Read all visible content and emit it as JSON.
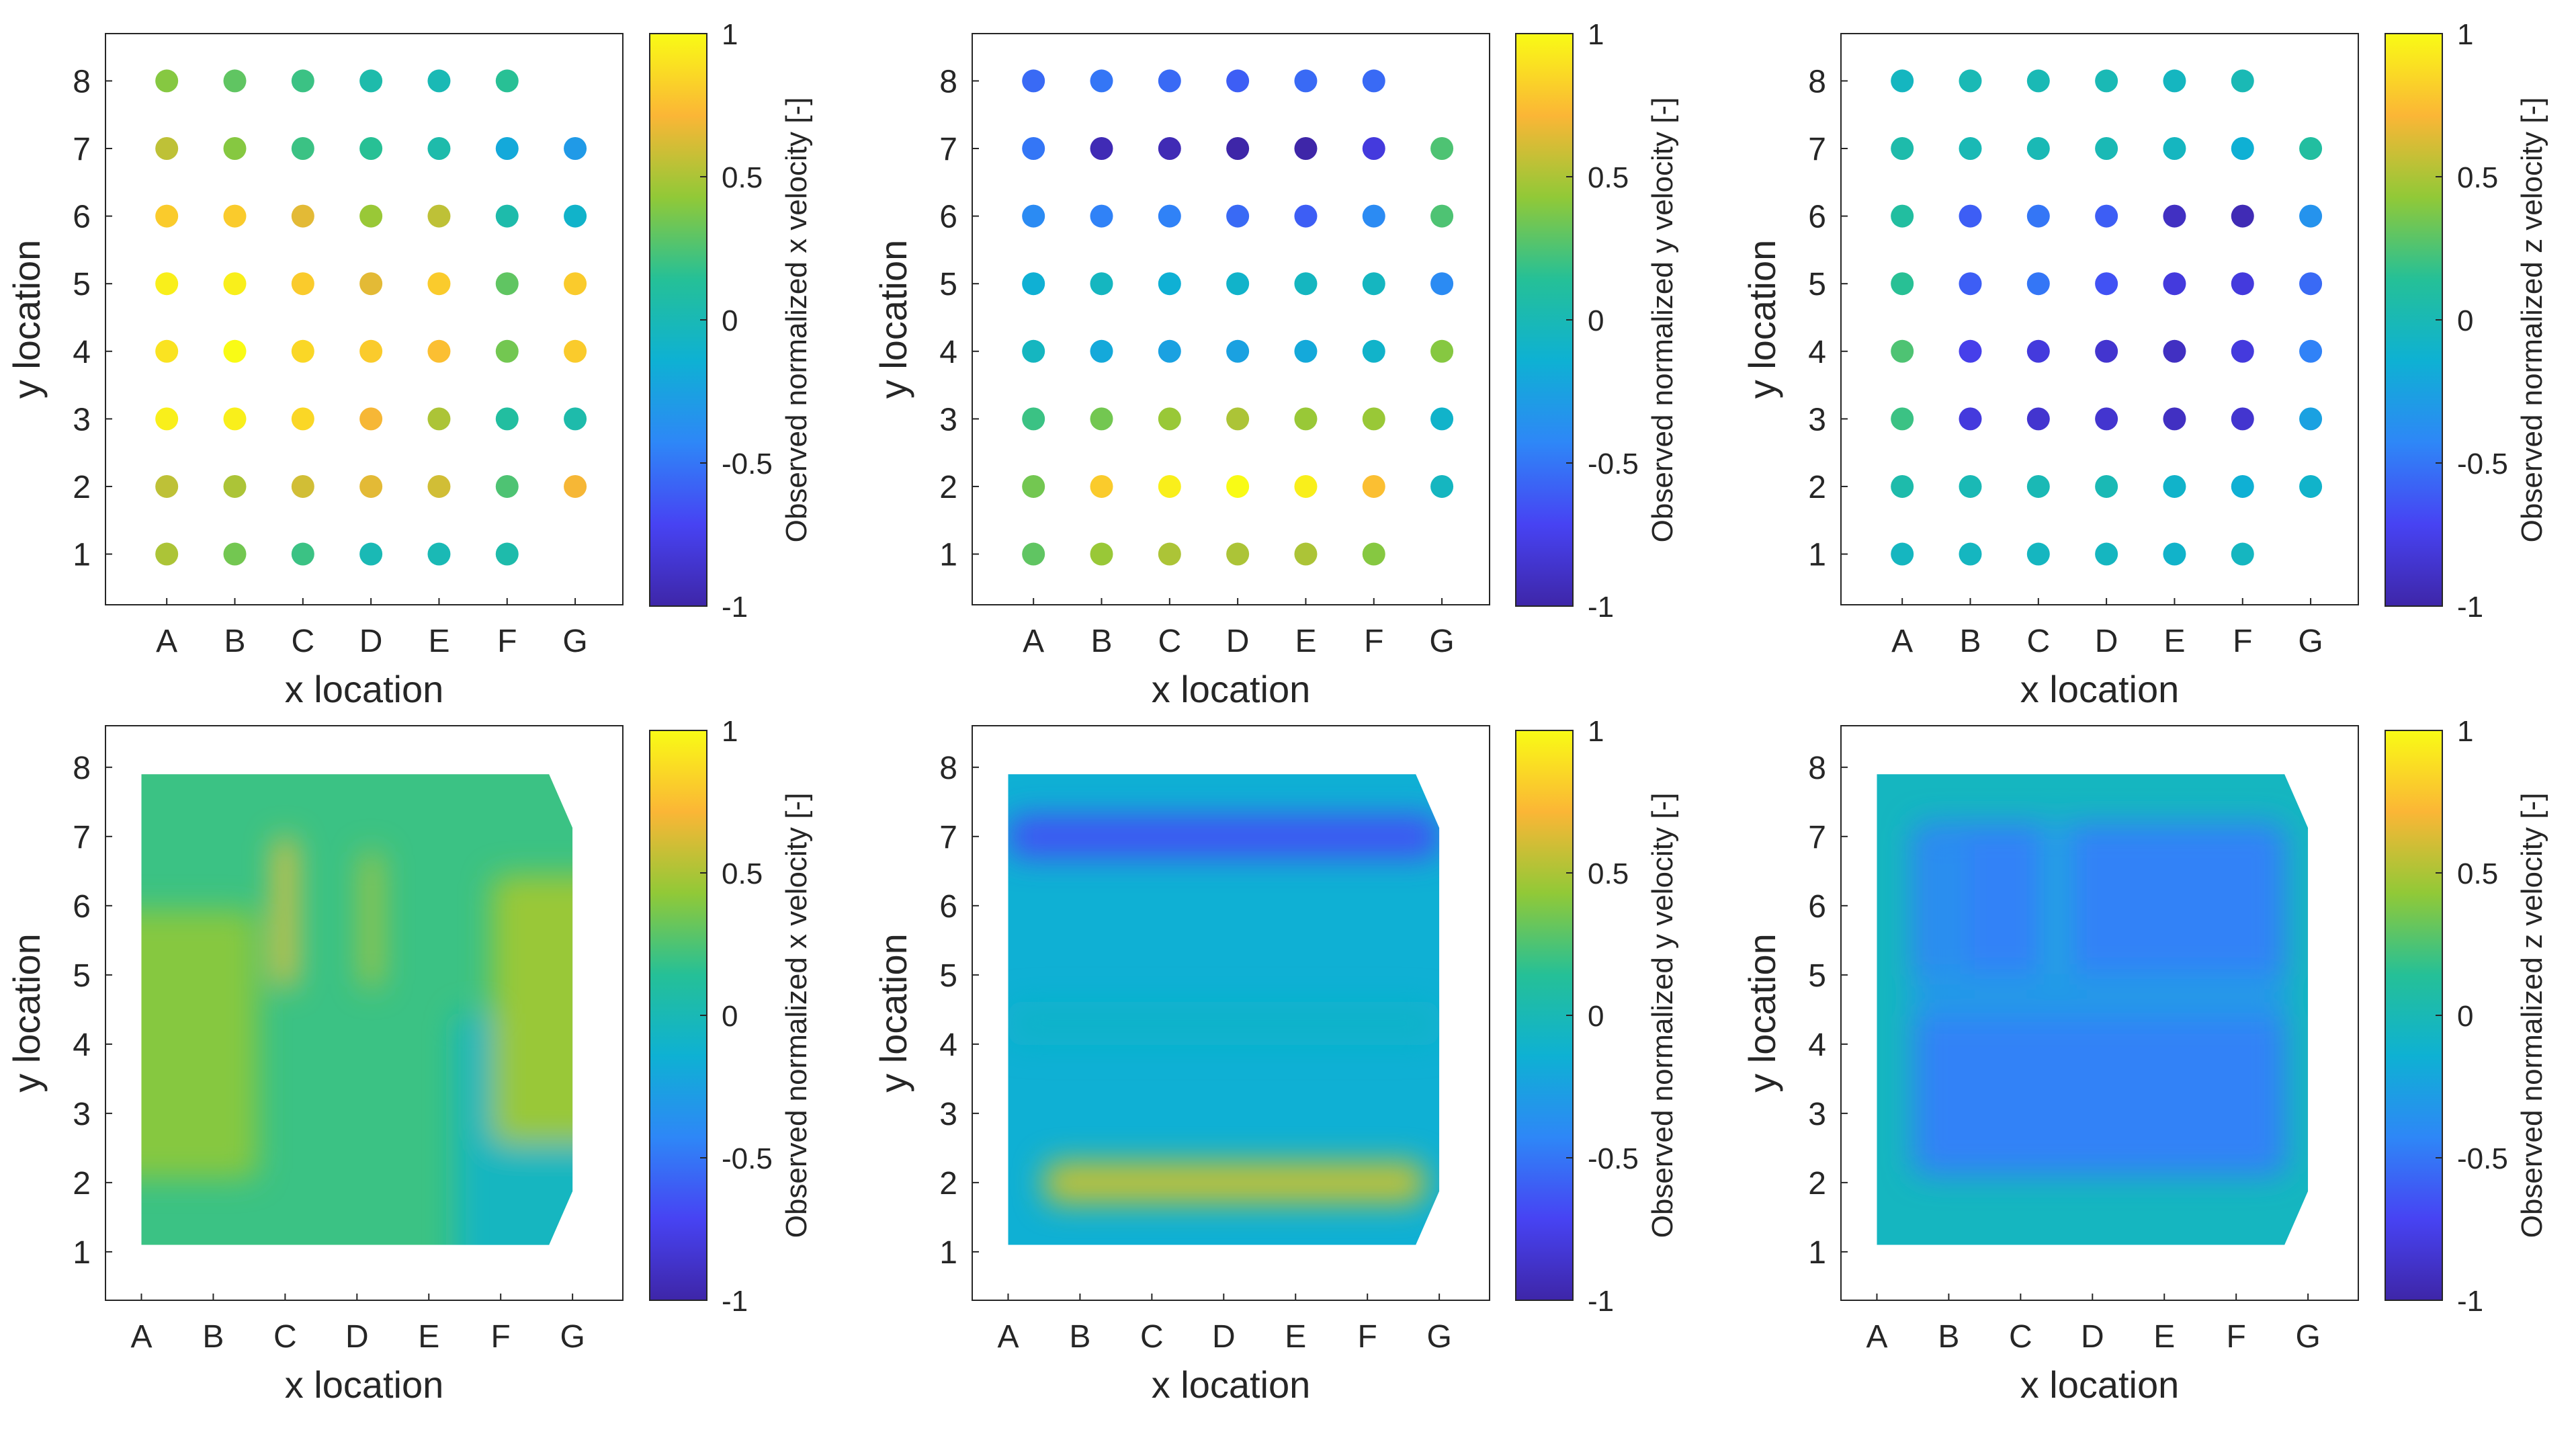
{
  "colorbar_ticks": [
    "1",
    "0.5",
    "0",
    "-0.5",
    "-1"
  ],
  "colormap": [
    "#3e26a8",
    "#4743f3",
    "#2e87f7",
    "#0eb1d3",
    "#25c097",
    "#91c937",
    "#fbb636",
    "#f9fb15"
  ],
  "chart_data": [
    {
      "type": "scatter",
      "title": "",
      "xlabel": "x location",
      "ylabel": "y location",
      "colorbar_label": "Observed normalized x velocity [-]",
      "x_ticks": [
        "A",
        "B",
        "C",
        "D",
        "E",
        "F",
        "G"
      ],
      "y_ticks": [
        "1",
        "2",
        "3",
        "4",
        "5",
        "6",
        "7",
        "8"
      ],
      "clim": [
        -1,
        1
      ],
      "values": [
        [
          0.5,
          0.35,
          0.2,
          0.0,
          0.0,
          0.05,
          null
        ],
        [
          0.55,
          0.5,
          0.6,
          0.65,
          0.6,
          0.25,
          0.7
        ],
        [
          0.95,
          0.95,
          0.85,
          0.7,
          0.5,
          0.1,
          0.05
        ],
        [
          0.9,
          1.0,
          0.85,
          0.8,
          0.75,
          0.35,
          0.8
        ],
        [
          0.95,
          0.95,
          0.8,
          0.65,
          0.8,
          0.3,
          0.8
        ],
        [
          0.8,
          0.8,
          0.65,
          0.45,
          0.55,
          0.05,
          -0.1
        ],
        [
          0.55,
          0.4,
          0.2,
          0.15,
          0.05,
          -0.2,
          -0.3
        ],
        [
          0.4,
          0.3,
          0.2,
          0.05,
          0.0,
          0.15,
          null
        ]
      ]
    },
    {
      "type": "scatter",
      "title": "",
      "xlabel": "x location",
      "ylabel": "y location",
      "colorbar_label": "Observed normalized y velocity [-]",
      "x_ticks": [
        "A",
        "B",
        "C",
        "D",
        "E",
        "F",
        "G"
      ],
      "y_ticks": [
        "1",
        "2",
        "3",
        "4",
        "5",
        "6",
        "7",
        "8"
      ],
      "clim": [
        -1,
        1
      ],
      "values": [
        [
          0.3,
          0.45,
          0.5,
          0.5,
          0.5,
          0.4,
          null
        ],
        [
          0.35,
          0.8,
          0.95,
          1.0,
          0.95,
          0.75,
          -0.05
        ],
        [
          0.2,
          0.35,
          0.45,
          0.5,
          0.45,
          0.45,
          -0.1
        ],
        [
          -0.05,
          -0.2,
          -0.25,
          -0.25,
          -0.2,
          -0.1,
          0.4
        ],
        [
          -0.15,
          -0.05,
          -0.15,
          -0.1,
          -0.05,
          -0.05,
          -0.4
        ],
        [
          -0.4,
          -0.45,
          -0.45,
          -0.55,
          -0.6,
          -0.4,
          0.25
        ],
        [
          -0.5,
          -0.95,
          -0.95,
          -1.0,
          -1.0,
          -0.8,
          0.25
        ],
        [
          -0.55,
          -0.5,
          -0.55,
          -0.6,
          -0.55,
          -0.55,
          null
        ]
      ]
    },
    {
      "type": "scatter",
      "title": "",
      "xlabel": "x location",
      "ylabel": "y location",
      "colorbar_label": "Observed normalized z velocity [-]",
      "x_ticks": [
        "A",
        "B",
        "C",
        "D",
        "E",
        "F",
        "G"
      ],
      "y_ticks": [
        "1",
        "2",
        "3",
        "4",
        "5",
        "6",
        "7",
        "8"
      ],
      "clim": [
        -1,
        1
      ],
      "values": [
        [
          -0.05,
          -0.05,
          -0.05,
          -0.05,
          -0.1,
          -0.05,
          null
        ],
        [
          0.05,
          0.0,
          0.0,
          0.0,
          -0.1,
          -0.15,
          -0.1
        ],
        [
          0.2,
          -0.8,
          -0.85,
          -0.85,
          -0.9,
          -0.85,
          -0.25
        ],
        [
          0.25,
          -0.75,
          -0.8,
          -0.85,
          -0.9,
          -0.8,
          -0.45
        ],
        [
          0.15,
          -0.6,
          -0.5,
          -0.65,
          -0.8,
          -0.8,
          -0.55
        ],
        [
          0.1,
          -0.6,
          -0.5,
          -0.6,
          -0.9,
          -0.95,
          -0.35
        ],
        [
          0.05,
          0.0,
          0.0,
          0.0,
          -0.05,
          -0.15,
          0.1
        ],
        [
          -0.05,
          0.0,
          0.0,
          0.0,
          -0.05,
          0.0,
          null
        ]
      ]
    },
    {
      "type": "heatmap",
      "title": "",
      "xlabel": "x location",
      "ylabel": "y location",
      "colorbar_label": "Observed normalized x velocity [-]",
      "x_ticks": [
        "A",
        "B",
        "C",
        "D",
        "E",
        "F",
        "G"
      ],
      "y_ticks": [
        "1",
        "2",
        "3",
        "4",
        "5",
        "6",
        "7",
        "8"
      ],
      "clim": [
        -1,
        1
      ],
      "x_range": [
        0.5,
        7.7
      ],
      "y_range": [
        0.3,
        8.6
      ],
      "data_extent_x": [
        1,
        7
      ],
      "data_extent_y": [
        1.1,
        7.9
      ],
      "background_value": 0.2,
      "features": [
        {
          "kind": "hot-streak",
          "x": 3.0,
          "y_from": 4.8,
          "y_to": 7.0,
          "value": 0.75
        },
        {
          "kind": "warm-streak",
          "x": 4.2,
          "y_from": 4.8,
          "y_to": 6.8,
          "value": 0.5
        },
        {
          "kind": "warm-region",
          "x": 1.5,
          "y": 4.0,
          "value": 0.4
        },
        {
          "kind": "cool-patch",
          "x": 6.5,
          "y": 2.5,
          "value": -0.05
        },
        {
          "kind": "warm-spot",
          "x": 7.0,
          "y": 4.5,
          "value": 0.45
        }
      ]
    },
    {
      "type": "heatmap",
      "title": "",
      "xlabel": "x location",
      "ylabel": "y location",
      "colorbar_label": "Observed normalized y velocity [-]",
      "x_ticks": [
        "A",
        "B",
        "C",
        "D",
        "E",
        "F",
        "G"
      ],
      "y_ticks": [
        "1",
        "2",
        "3",
        "4",
        "5",
        "6",
        "7",
        "8"
      ],
      "clim": [
        -1,
        1
      ],
      "x_range": [
        0.5,
        7.7
      ],
      "y_range": [
        0.3,
        8.6
      ],
      "data_extent_x": [
        1,
        7
      ],
      "data_extent_y": [
        1.1,
        7.9
      ],
      "background_value": -0.15,
      "features": [
        {
          "kind": "low-band",
          "x_from": 1.0,
          "x_to": 7.0,
          "y": 7.0,
          "value": -0.65
        },
        {
          "kind": "high-band",
          "x_from": 1.5,
          "x_to": 6.8,
          "y": 2.0,
          "value": 0.55
        },
        {
          "kind": "mid-band",
          "x_from": 1.0,
          "x_to": 7.0,
          "y": 4.3,
          "value": -0.1
        }
      ]
    },
    {
      "type": "heatmap",
      "title": "",
      "xlabel": "x location",
      "ylabel": "y location",
      "colorbar_label": "Observed normalized z velocity [-]",
      "x_ticks": [
        "A",
        "B",
        "C",
        "D",
        "E",
        "F",
        "G"
      ],
      "y_ticks": [
        "1",
        "2",
        "3",
        "4",
        "5",
        "6",
        "7",
        "8"
      ],
      "clim": [
        -1,
        1
      ],
      "x_range": [
        0.5,
        7.7
      ],
      "y_range": [
        0.3,
        8.6
      ],
      "data_extent_x": [
        1,
        7
      ],
      "data_extent_y": [
        1.1,
        7.9
      ],
      "background_value": -0.05,
      "features": [
        {
          "kind": "low-interior",
          "x_from": 1.5,
          "x_to": 6.7,
          "y_from": 2.1,
          "y_to": 7.2,
          "value": -0.45
        },
        {
          "kind": "divider",
          "x": 3.5,
          "y_from": 4.8,
          "y_to": 7.2,
          "value": -0.15
        },
        {
          "kind": "divider",
          "x": 2.0,
          "y_from": 4.8,
          "y_to": 7.0,
          "value": -0.3
        },
        {
          "kind": "divider",
          "x_from": 1.5,
          "x_to": 6.7,
          "y": 4.7,
          "value": -0.3
        }
      ]
    }
  ]
}
